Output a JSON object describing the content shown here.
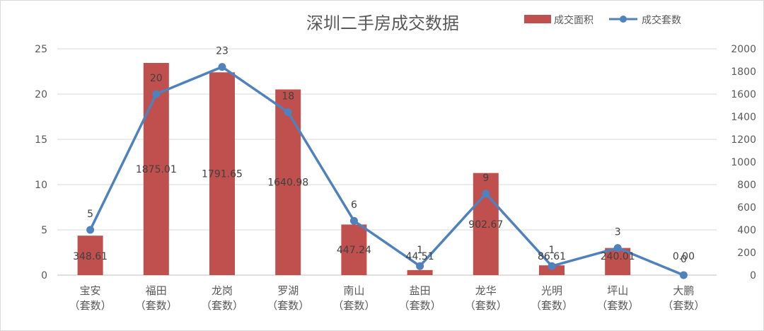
{
  "chart_data": {
    "type": "bar+line",
    "title": "深圳二手房成交数据",
    "categories": [
      [
        "宝安",
        "（套数）"
      ],
      [
        "福田",
        "（套数）"
      ],
      [
        "龙岗",
        "（套数）"
      ],
      [
        "罗湖",
        "（套数）"
      ],
      [
        "南山",
        "（套数）"
      ],
      [
        "盐田",
        "（套数）"
      ],
      [
        "龙华",
        "（套数）"
      ],
      [
        "光明",
        "（套数）"
      ],
      [
        "坪山",
        "（套数）"
      ],
      [
        "大鹏",
        "（套数）"
      ]
    ],
    "series": [
      {
        "name": "成交面积",
        "type": "bar",
        "axis": "left",
        "color": "#c0504d",
        "values": [
          4.36,
          23.44,
          22.4,
          20.51,
          5.59,
          0.56,
          11.28,
          1.08,
          3.0,
          0.0
        ],
        "labels": [
          "348.61",
          "1875.01",
          "1791.65",
          "1640.98",
          "447.24",
          "44.51",
          "902.67",
          "86.61",
          "240.01",
          "0.00"
        ]
      },
      {
        "name": "成交套数",
        "type": "line",
        "axis": "right",
        "color": "#4f81bd",
        "values": [
          400,
          1600,
          1840,
          1440,
          480,
          80,
          720,
          80,
          240,
          0
        ],
        "labels": [
          "5",
          "20",
          "23",
          "18",
          "6",
          "1",
          "9",
          "1",
          "3",
          "0"
        ]
      }
    ],
    "left_axis": {
      "ylim": [
        0,
        25
      ],
      "ticks": [
        0,
        5,
        10,
        15,
        20,
        25
      ]
    },
    "right_axis": {
      "ylim": [
        0,
        2000
      ],
      "ticks": [
        0,
        200,
        400,
        600,
        800,
        1000,
        1200,
        1400,
        1600,
        1800,
        2000
      ]
    },
    "grid": true,
    "legend_position": "top-right"
  }
}
